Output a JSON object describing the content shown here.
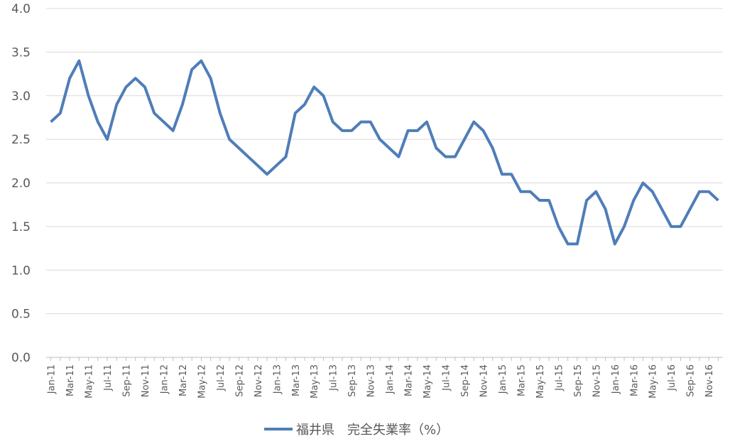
{
  "chart_data": {
    "type": "line",
    "categories": [
      "Jan-11",
      null,
      "Mar-11",
      null,
      "May-11",
      null,
      "Jul-11",
      null,
      "Sep-11",
      null,
      "Nov-11",
      null,
      "Jan-12",
      null,
      "Mar-12",
      null,
      "May-12",
      null,
      "Jul-12",
      null,
      "Sep-12",
      null,
      "Nov-12",
      null,
      "Jan-13",
      null,
      "Mar-13",
      null,
      "May-13",
      null,
      "Jul-13",
      null,
      "Sep-13",
      null,
      "Nov-13",
      null,
      "Jan-14",
      null,
      "Mar-14",
      null,
      "May-14",
      null,
      "Jul-14",
      null,
      "Sep-14",
      null,
      "Nov-14",
      null,
      "Jan-15",
      null,
      "Mar-15",
      null,
      "May-15",
      null,
      "Jul-15",
      null,
      "Sep-15",
      null,
      "Nov-15",
      null,
      "Jan-16",
      null,
      "Mar-16",
      null,
      "May-16",
      null,
      "Jul-16",
      null,
      "Sep-16",
      null,
      "Nov-16",
      null
    ],
    "series": [
      {
        "name": "福井県　完全失業率（%）",
        "color": "#4f7db8",
        "values": [
          2.7,
          2.8,
          3.2,
          3.4,
          3.0,
          2.7,
          2.5,
          2.9,
          3.1,
          3.2,
          3.1,
          2.8,
          2.7,
          2.6,
          2.9,
          3.3,
          3.4,
          3.2,
          2.8,
          2.5,
          2.4,
          2.3,
          2.2,
          2.1,
          2.2,
          2.3,
          2.8,
          2.9,
          3.1,
          3.0,
          2.7,
          2.6,
          2.6,
          2.7,
          2.7,
          2.5,
          2.4,
          2.3,
          2.6,
          2.6,
          2.7,
          2.4,
          2.3,
          2.3,
          2.5,
          2.7,
          2.6,
          2.4,
          2.1,
          2.1,
          1.9,
          1.9,
          1.8,
          1.8,
          1.5,
          1.3,
          1.3,
          1.8,
          1.9,
          1.7,
          1.3,
          1.5,
          1.8,
          2.0,
          1.9,
          1.7,
          1.5,
          1.5,
          1.7,
          1.9,
          1.9,
          1.8
        ]
      }
    ],
    "ylim": [
      0,
      4
    ],
    "yticks": [
      {
        "value": 0,
        "label": "0.0"
      },
      {
        "value": 0.5,
        "label": "0.5"
      },
      {
        "value": 1,
        "label": "1.0"
      },
      {
        "value": 1.5,
        "label": "1.5"
      },
      {
        "value": 2,
        "label": "2.0"
      },
      {
        "value": 2.5,
        "label": "2.5"
      },
      {
        "value": 3,
        "label": "3.0"
      },
      {
        "value": 3.5,
        "label": "3.5"
      },
      {
        "value": 4,
        "label": "4.0"
      }
    ],
    "grid": true,
    "legend": "bottom"
  }
}
